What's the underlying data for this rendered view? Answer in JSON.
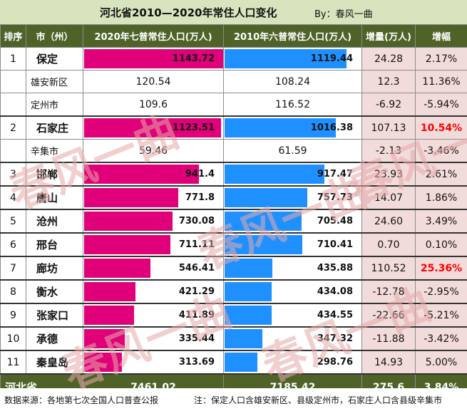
{
  "header": {
    "title": "河北省2010—2020年常住人口变化",
    "byline": "By：春风一曲"
  },
  "columns": {
    "rank": "排序",
    "city": "市（州）",
    "pop2020": "2020年七普常住人口(万人)",
    "pop2010": "2010年六普常住人口(万人)",
    "increase": "增量(万人)",
    "growth": "增幅"
  },
  "colors": {
    "bar2020": "#e0007a",
    "bar2010": "#1e90ff",
    "header_bg": "#4f6228",
    "title_bg": "#d7e4bd",
    "highlight": "#ff0000"
  },
  "chart_data": {
    "type": "table",
    "title": "河北省2010—2020年常住人口变化",
    "unit": "万人",
    "bar_scale_max": 1143.72,
    "rows": [
      {
        "rank": "1",
        "city": "保定",
        "pop2020": "1143.72",
        "pop2010": "1119.44",
        "increase": "24.28",
        "growth": "2.17%",
        "bar2020": 1143.72,
        "bar2010": 1119.44,
        "highlight": false
      },
      {
        "rank": "",
        "city": "雄安新区",
        "pop2020": "120.54",
        "pop2010": "108.24",
        "increase": "12.3",
        "growth": "11.36%",
        "sub": true
      },
      {
        "rank": "",
        "city": "定州市",
        "pop2020": "109.6",
        "pop2010": "116.52",
        "increase": "-6.92",
        "growth": "-5.94%",
        "sub": true
      },
      {
        "rank": "2",
        "city": "石家庄",
        "pop2020": "1123.51",
        "pop2010": "1016.38",
        "increase": "107.13",
        "growth": "10.54%",
        "bar2020": 1123.51,
        "bar2010": 1016.38,
        "highlight": true
      },
      {
        "rank": "",
        "city": "辛集市",
        "pop2020": "59.46",
        "pop2010": "61.59",
        "increase": "-2.13",
        "growth": "-3.46%",
        "sub": true
      },
      {
        "rank": "3",
        "city": "邯郸",
        "pop2020": "941.4",
        "pop2010": "917.47",
        "increase": "23.93",
        "growth": "2.61%",
        "bar2020": 941.4,
        "bar2010": 917.47,
        "highlight": false
      },
      {
        "rank": "4",
        "city": "唐山",
        "pop2020": "771.8",
        "pop2010": "757.73",
        "increase": "14.07",
        "growth": "1.86%",
        "bar2020": 771.8,
        "bar2010": 757.73,
        "highlight": false
      },
      {
        "rank": "5",
        "city": "沧州",
        "pop2020": "730.08",
        "pop2010": "705.48",
        "increase": "24.60",
        "growth": "3.49%",
        "bar2020": 730.08,
        "bar2010": 705.48,
        "highlight": false
      },
      {
        "rank": "6",
        "city": "邢台",
        "pop2020": "711.11",
        "pop2010": "710.41",
        "increase": "0.70",
        "growth": "0.10%",
        "bar2020": 711.11,
        "bar2010": 710.41,
        "highlight": false
      },
      {
        "rank": "7",
        "city": "廊坊",
        "pop2020": "546.41",
        "pop2010": "435.88",
        "increase": "110.52",
        "growth": "25.36%",
        "bar2020": 546.41,
        "bar2010": 435.88,
        "highlight": true
      },
      {
        "rank": "8",
        "city": "衡水",
        "pop2020": "421.29",
        "pop2010": "434.08",
        "increase": "-12.78",
        "growth": "-2.95%",
        "bar2020": 421.29,
        "bar2010": 434.08,
        "highlight": false
      },
      {
        "rank": "9",
        "city": "张家口",
        "pop2020": "411.89",
        "pop2010": "434.55",
        "increase": "-22.66",
        "growth": "-5.21%",
        "bar2020": 411.89,
        "bar2010": 434.55,
        "highlight": false
      },
      {
        "rank": "10",
        "city": "承德",
        "pop2020": "335.44",
        "pop2010": "347.32",
        "increase": "-11.88",
        "growth": "-3.42%",
        "bar2020": 335.44,
        "bar2010": 347.32,
        "highlight": false
      },
      {
        "rank": "11",
        "city": "秦皇岛",
        "pop2020": "313.69",
        "pop2010": "298.76",
        "increase": "14.93",
        "growth": "5.00%",
        "bar2020": 313.69,
        "bar2010": 298.76,
        "highlight": false
      }
    ],
    "total": {
      "label": "河北省",
      "pop2020": "7461.02",
      "pop2010": "7185.42",
      "increase": "275.6",
      "growth": "3.84%"
    }
  },
  "footer": {
    "source": "数据来源：各地第七次全国人口普查公报",
    "note": "注：保定人口含雄安新区、县级定州市，石家庄人口含县级辛集市"
  },
  "watermark": "春风一曲"
}
